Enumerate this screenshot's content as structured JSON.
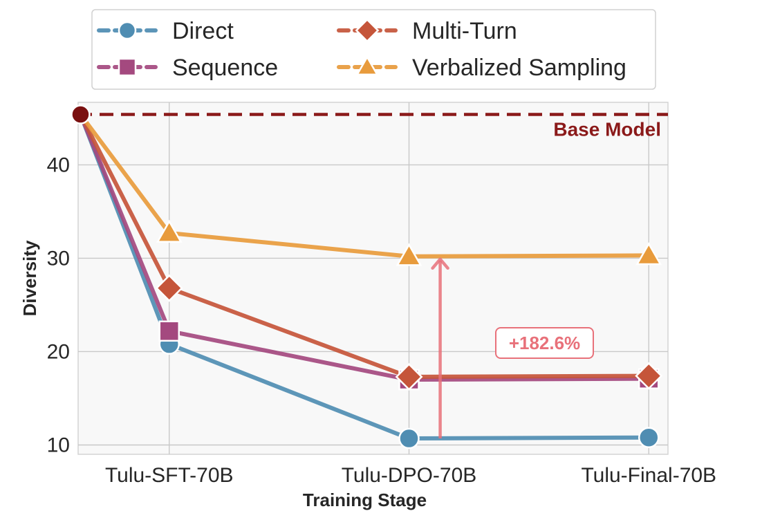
{
  "chart_data": {
    "type": "line",
    "title": "",
    "xlabel": "Training Stage",
    "ylabel": "Diversity",
    "categories": [
      "Tulu-SFT-70B",
      "Tulu-DPO-70B",
      "Tulu-Final-70B"
    ],
    "x_positions": [
      0,
      1,
      2
    ],
    "xlim": [
      -0.38,
      2.08
    ],
    "ylim": [
      9.0,
      46.7
    ],
    "yticks": [
      10,
      20,
      30,
      40
    ],
    "grid": true,
    "legend_position": "top",
    "series": [
      {
        "name": "Direct",
        "marker": "circle",
        "color": "#4f8db2",
        "x": [
          -0.37,
          0,
          1,
          2
        ],
        "values": [
          45.4,
          20.8,
          10.7,
          10.8
        ]
      },
      {
        "name": "Sequence",
        "marker": "square",
        "color": "#a4497f",
        "x": [
          -0.37,
          0,
          1,
          2
        ],
        "values": [
          45.4,
          22.2,
          17.0,
          17.1
        ]
      },
      {
        "name": "Multi-Turn",
        "marker": "diamond",
        "color": "#c5553a",
        "x": [
          -0.37,
          0,
          1,
          2
        ],
        "values": [
          45.4,
          26.8,
          17.3,
          17.4
        ]
      },
      {
        "name": "Verbalized Sampling",
        "marker": "triangle",
        "color": "#e89b3c",
        "x": [
          -0.37,
          0,
          1,
          2
        ],
        "values": [
          45.4,
          32.7,
          30.2,
          30.3
        ]
      }
    ],
    "reference_line": {
      "label": "Base Model",
      "value": 45.4,
      "color": "#8b1a1a"
    },
    "base_point": {
      "x": -0.37,
      "value": 45.4,
      "color": "#7a1010"
    },
    "annotation": {
      "label": "+182.6%",
      "x": 1.13,
      "from": 10.7,
      "to": 30.2,
      "color": "#e8717a"
    }
  }
}
